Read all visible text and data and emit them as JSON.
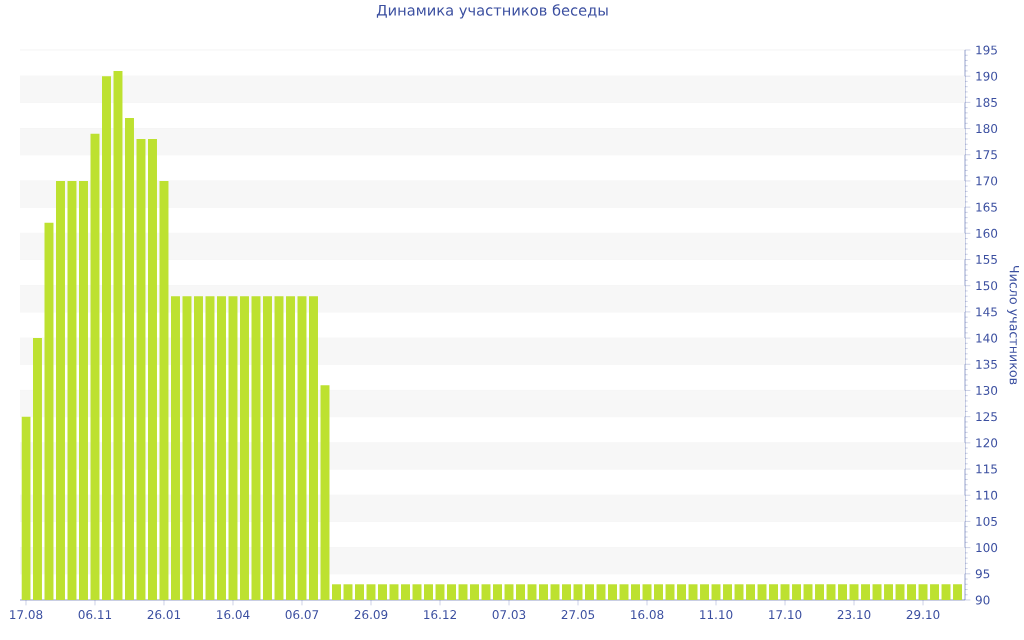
{
  "chart_data": {
    "type": "bar",
    "title": "Динамика участников беседы",
    "ylabel": "Число участников",
    "categories": [
      "17.08",
      null,
      null,
      null,
      null,
      null,
      "06.11",
      null,
      null,
      null,
      null,
      null,
      "26.01",
      null,
      null,
      null,
      null,
      null,
      "16.04",
      null,
      null,
      null,
      null,
      null,
      "06.07",
      null,
      null,
      null,
      null,
      null,
      "26.09",
      null,
      null,
      null,
      null,
      null,
      "16.12",
      null,
      null,
      null,
      null,
      null,
      "07.03",
      null,
      null,
      null,
      null,
      null,
      "27.05",
      null,
      null,
      null,
      null,
      null,
      "16.08",
      null,
      null,
      null,
      null,
      null,
      "11.10",
      null,
      null,
      null,
      null,
      null,
      "17.10",
      null,
      null,
      null,
      null,
      null,
      "23.10",
      null,
      null,
      null,
      null,
      null,
      "29.10",
      null,
      null,
      null
    ],
    "values": [
      125,
      140,
      162,
      170,
      170,
      170,
      179,
      190,
      191,
      182,
      178,
      178,
      170,
      148,
      148,
      148,
      148,
      148,
      148,
      148,
      148,
      148,
      148,
      148,
      148,
      148,
      131,
      93,
      93,
      93,
      93,
      93,
      93,
      93,
      93,
      93,
      93,
      93,
      93,
      93,
      93,
      93,
      93,
      93,
      93,
      93,
      93,
      93,
      93,
      93,
      93,
      93,
      93,
      93,
      93,
      93,
      93,
      93,
      93,
      93,
      93,
      93,
      93,
      93,
      93,
      93,
      93,
      93,
      93,
      93,
      93,
      93,
      93,
      93,
      93,
      93,
      93,
      93,
      93,
      93,
      93,
      93
    ],
    "color": "#bde130",
    "ylim": [
      90,
      195
    ],
    "yticks": [
      90,
      95,
      100,
      105,
      110,
      115,
      120,
      125,
      130,
      135,
      140,
      145,
      150,
      155,
      160,
      165,
      170,
      175,
      180,
      185,
      190,
      195
    ],
    "grid": "y"
  }
}
